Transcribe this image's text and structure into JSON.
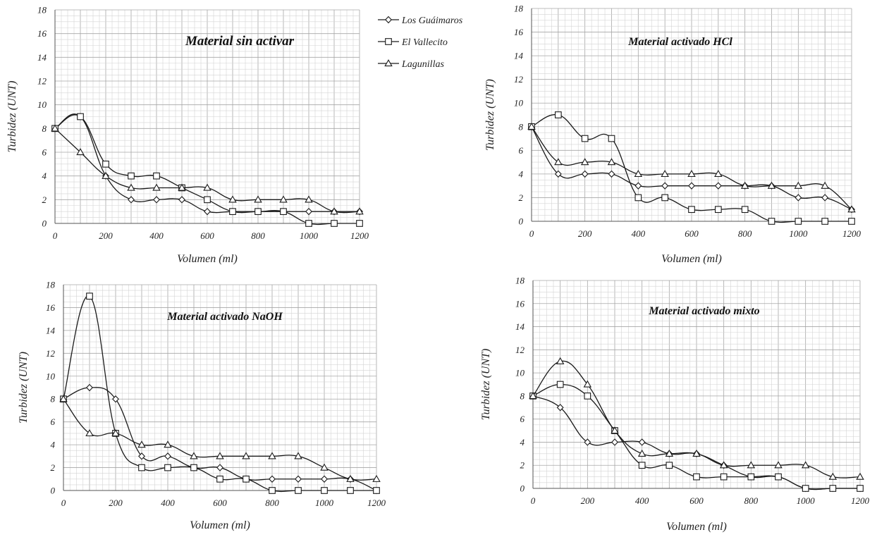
{
  "legend": [
    {
      "name": "Los Guáimaros",
      "marker": "diamond"
    },
    {
      "name": "El Vallecito",
      "marker": "square"
    },
    {
      "name": "Lagunillas",
      "marker": "triangle"
    }
  ],
  "chart_data": [
    {
      "type": "line",
      "title": "Material sin activar",
      "xlabel": "Volumen (ml)",
      "ylabel": "Turbidez (UNT)",
      "xlim": [
        0,
        1200
      ],
      "ylim": [
        0,
        18
      ],
      "xticks": [
        "0",
        "200",
        "400",
        "600",
        "800",
        "1000",
        "1200"
      ],
      "yticks": [
        "0",
        "2",
        "4",
        "6",
        "8",
        "10",
        "12",
        "14",
        "16",
        "18"
      ],
      "x": [
        0,
        100,
        200,
        300,
        400,
        500,
        600,
        700,
        800,
        900,
        1000,
        1100,
        1200
      ],
      "series": [
        {
          "name": "Los Guáimaros",
          "values": [
            8,
            9,
            4,
            2,
            2,
            2,
            1,
            1,
            1,
            1,
            1,
            1,
            1
          ]
        },
        {
          "name": "El Vallecito",
          "values": [
            8,
            9,
            5,
            4,
            4,
            3,
            2,
            1,
            1,
            1,
            0,
            0,
            0
          ]
        },
        {
          "name": "Lagunillas",
          "values": [
            8,
            6,
            4,
            3,
            3,
            3,
            3,
            2,
            2,
            2,
            2,
            1,
            1
          ]
        }
      ],
      "grid": true,
      "legend_position": "right"
    },
    {
      "type": "line",
      "title": "Material activado HCl",
      "xlabel": "Volumen (ml)",
      "ylabel": "Turbidez (UNT)",
      "xlim": [
        0,
        1200
      ],
      "ylim": [
        0,
        18
      ],
      "xticks": [
        "0",
        "200",
        "400",
        "600",
        "800",
        "1000",
        "1200"
      ],
      "yticks": [
        "0",
        "2",
        "4",
        "6",
        "8",
        "10",
        "12",
        "14",
        "16",
        "18"
      ],
      "x": [
        0,
        100,
        200,
        300,
        400,
        500,
        600,
        700,
        800,
        900,
        1000,
        1100,
        1200
      ],
      "series": [
        {
          "name": "Los Guáimaros",
          "values": [
            8,
            4,
            4,
            4,
            3,
            3,
            3,
            3,
            3,
            3,
            2,
            2,
            1
          ]
        },
        {
          "name": "El Vallecito",
          "values": [
            8,
            9,
            7,
            7,
            2,
            2,
            1,
            1,
            1,
            0,
            0,
            0,
            0
          ]
        },
        {
          "name": "Lagunillas",
          "values": [
            8,
            5,
            5,
            5,
            4,
            4,
            4,
            4,
            3,
            3,
            3,
            3,
            1
          ]
        }
      ],
      "grid": true
    },
    {
      "type": "line",
      "title": "Material activado NaOH",
      "xlabel": "Volumen (ml)",
      "ylabel": "Turbidez (UNT)",
      "xlim": [
        0,
        1200
      ],
      "ylim": [
        0,
        18
      ],
      "xticks": [
        "0",
        "200",
        "400",
        "600",
        "800",
        "1000",
        "1200"
      ],
      "yticks": [
        "0",
        "2",
        "4",
        "6",
        "8",
        "10",
        "12",
        "14",
        "16",
        "18"
      ],
      "x": [
        0,
        100,
        200,
        300,
        400,
        500,
        600,
        700,
        800,
        900,
        1000,
        1100,
        1200
      ],
      "series": [
        {
          "name": "Los Guáimaros",
          "values": [
            8,
            9,
            8,
            3,
            3,
            2,
            2,
            1,
            1,
            1,
            1,
            1,
            0
          ]
        },
        {
          "name": "El Vallecito",
          "values": [
            8,
            17,
            5,
            2,
            2,
            2,
            1,
            1,
            0,
            0,
            0,
            0,
            0
          ]
        },
        {
          "name": "Lagunillas",
          "values": [
            8,
            5,
            5,
            4,
            4,
            3,
            3,
            3,
            3,
            3,
            2,
            1,
            1
          ]
        }
      ],
      "grid": true
    },
    {
      "type": "line",
      "title": "Material activado mixto",
      "xlabel": "Volumen (ml)",
      "ylabel": "Turbidez (UNT)",
      "xlim": [
        0,
        1200
      ],
      "ylim": [
        0,
        18
      ],
      "xticks": [
        "0",
        "200",
        "400",
        "600",
        "800",
        "1000",
        "1200"
      ],
      "yticks": [
        "0",
        "2",
        "4",
        "6",
        "8",
        "10",
        "12",
        "14",
        "16",
        "18"
      ],
      "x": [
        0,
        100,
        200,
        300,
        400,
        500,
        600,
        700,
        800,
        900,
        1000,
        1100,
        1200
      ],
      "series": [
        {
          "name": "Los Guáimaros",
          "values": [
            8,
            7,
            4,
            4,
            4,
            3,
            3,
            2,
            1,
            1,
            0,
            0,
            0
          ]
        },
        {
          "name": "El Vallecito",
          "values": [
            8,
            9,
            8,
            5,
            2,
            2,
            1,
            1,
            1,
            1,
            0,
            0,
            0
          ]
        },
        {
          "name": "Lagunillas",
          "values": [
            8,
            11,
            9,
            5,
            3,
            3,
            3,
            2,
            2,
            2,
            2,
            1,
            1
          ]
        }
      ],
      "grid": true
    }
  ]
}
